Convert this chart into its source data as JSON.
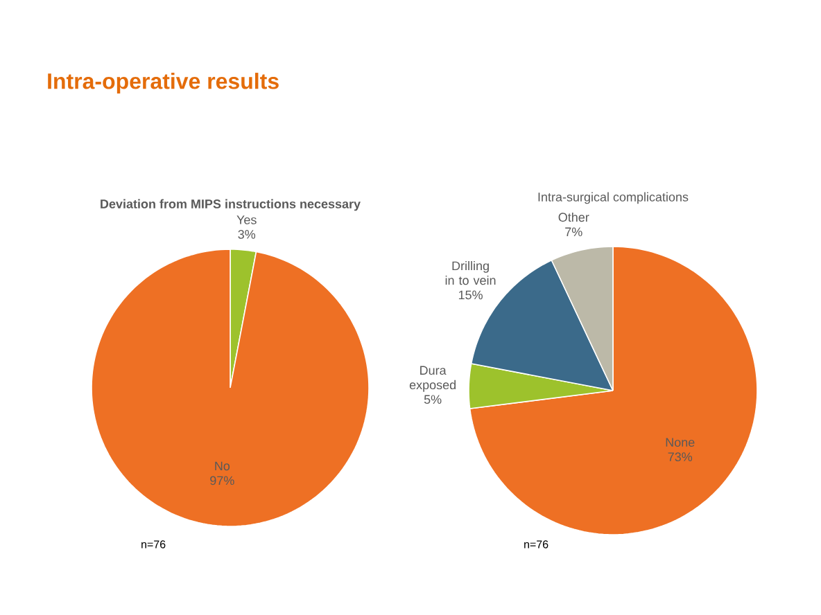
{
  "chart_data": [
    {
      "type": "pie",
      "title": "Deviation from MIPS instructions necessary",
      "categories": [
        "Yes",
        "No"
      ],
      "values": [
        3,
        97
      ],
      "value_labels": [
        "3%",
        "97%"
      ],
      "colors": [
        "#9dc22c",
        "#ee7024"
      ],
      "annotations": [
        "Intra-operative results",
        "n=76"
      ]
    },
    {
      "type": "pie",
      "title": "Intra-surgical complications",
      "categories": [
        "None",
        "Dura exposed",
        "Drilling in to vein",
        "Other"
      ],
      "values": [
        73,
        5,
        15,
        7
      ],
      "value_labels": [
        "73%",
        "5%",
        "15%",
        "7%"
      ],
      "colors": [
        "#ee7024",
        "#9dc22c",
        "#3b6a8a",
        "#bcb9a8"
      ],
      "annotations": [
        "n=76"
      ]
    }
  ]
}
